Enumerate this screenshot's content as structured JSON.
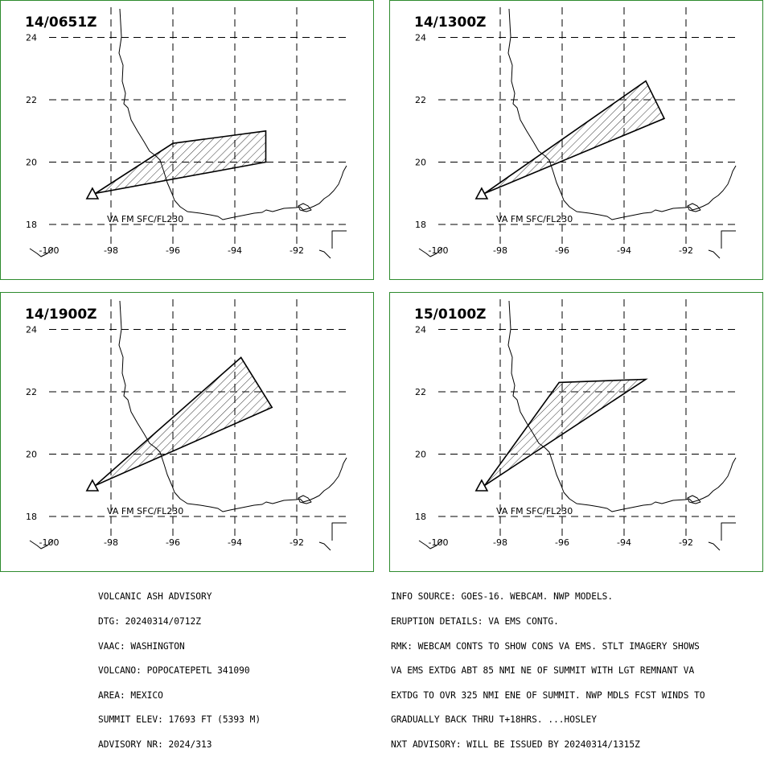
{
  "panels": [
    {
      "title": "14/0651Z",
      "layer": "VA FM SFC/FL230",
      "ash_polygon": [
        [
          -98.5,
          19.0
        ],
        [
          -96.0,
          20.6
        ],
        [
          -93.0,
          21.0
        ],
        [
          -93.0,
          20.0
        ],
        [
          -98.5,
          19.0
        ]
      ]
    },
    {
      "title": "14/1300Z",
      "layer": "VA FM SFC/FL230",
      "ash_polygon": [
        [
          -98.5,
          19.0
        ],
        [
          -93.3,
          22.6
        ],
        [
          -92.7,
          21.4
        ],
        [
          -98.5,
          19.0
        ]
      ]
    },
    {
      "title": "14/1900Z",
      "layer": "VA FM SFC/FL230",
      "ash_polygon": [
        [
          -98.5,
          19.0
        ],
        [
          -93.8,
          23.1
        ],
        [
          -92.8,
          21.5
        ],
        [
          -98.5,
          19.0
        ]
      ]
    },
    {
      "title": "15/0100Z",
      "layer": "VA FM SFC/FL230",
      "ash_polygon": [
        [
          -98.5,
          19.0
        ],
        [
          -96.1,
          22.3
        ],
        [
          -93.3,
          22.4
        ],
        [
          -98.5,
          19.0
        ]
      ]
    }
  ],
  "map": {
    "lon_ticks": [
      "-100",
      "-98",
      "-96",
      "-94",
      "-92"
    ],
    "lat_ticks": [
      "24",
      "22",
      "20",
      "18"
    ],
    "volcano": {
      "name": "POPOCATEPETL",
      "lon": -98.6,
      "lat": 18.98
    },
    "colors": {
      "border": "#2e8b2e",
      "ash_fill": "#000000",
      "coast": "#000000"
    }
  },
  "advisory_left": [
    "VOLCANIC ASH ADVISORY",
    "DTG: 20240314/0712Z",
    "VAAC: WASHINGTON",
    "VOLCANO: POPOCATEPETL 341090",
    "AREA: MEXICO",
    "SUMMIT ELEV: 17693 FT (5393 M)",
    "ADVISORY NR: 2024/313"
  ],
  "advisory_right": [
    "INFO SOURCE: GOES-16. WEBCAM. NWP MODELS.",
    "ERUPTION DETAILS: VA EMS CONTG.",
    "RMK: WEBCAM CONTS TO SHOW CONS VA EMS. STLT IMAGERY SHOWS",
    "VA EMS EXTDG ABT 85 NMI NE OF SUMMIT WITH LGT REMNANT VA",
    "EXTDG TO OVR 325 NMI ENE OF SUMMIT. NWP MDLS FCST WINDS TO",
    "GRADUALLY BACK THRU T+18HRS. ...HOSLEY",
    "NXT ADVISORY: WILL BE ISSUED BY 20240314/1315Z"
  ]
}
